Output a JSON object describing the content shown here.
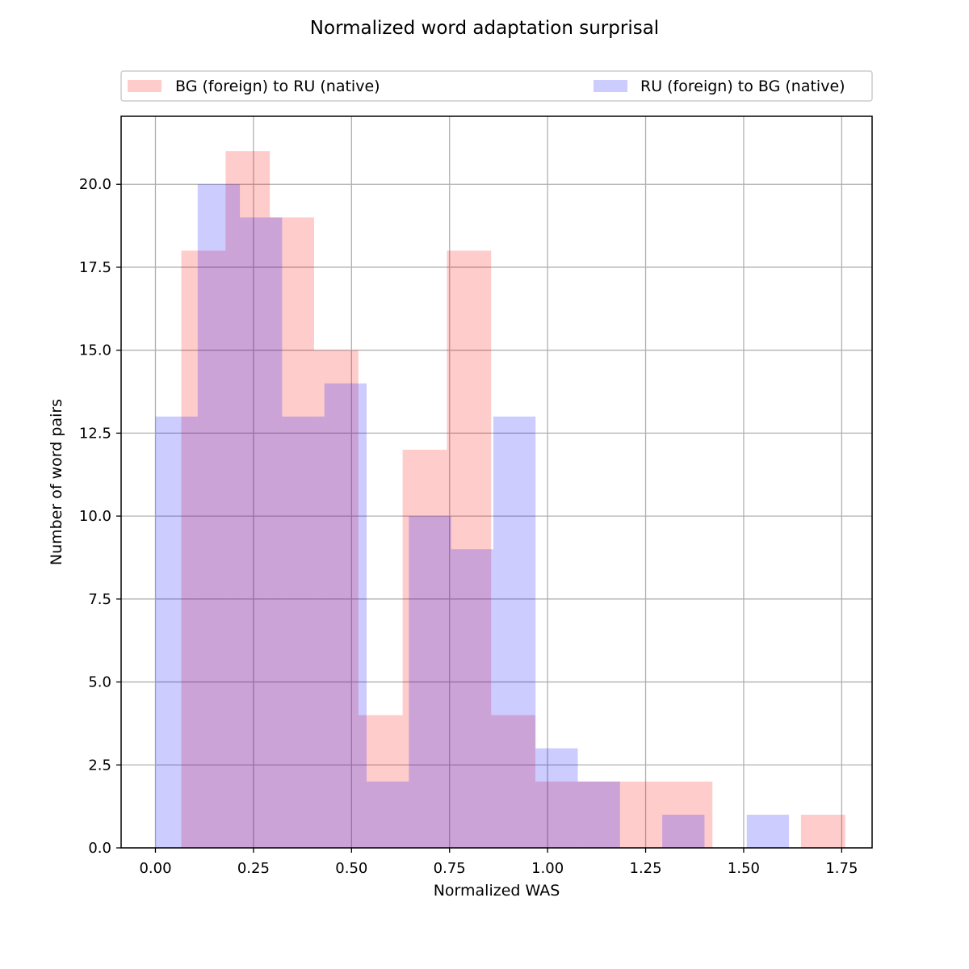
{
  "chart_data": {
    "type": "bar",
    "title": "Normalized word adaptation surprisal",
    "xlabel": "Normalized WAS",
    "ylabel": "Number of word pairs",
    "xlim": [
      -0.0875,
      1.8275
    ],
    "ylim": [
      0,
      22.05
    ],
    "xticks": [
      0.0,
      0.25,
      0.5,
      0.75,
      1.0,
      1.25,
      1.5,
      1.75
    ],
    "xtick_labels": [
      "0.00",
      "0.25",
      "0.50",
      "0.75",
      "1.00",
      "1.25",
      "1.50",
      "1.75"
    ],
    "yticks": [
      0.0,
      2.5,
      5.0,
      7.5,
      10.0,
      12.5,
      15.0,
      17.5,
      20.0
    ],
    "ytick_labels": [
      "0.0",
      "2.5",
      "5.0",
      "7.5",
      "10.0",
      "12.5",
      "15.0",
      "17.5",
      "20.0"
    ],
    "grid": true,
    "legend_position": "top",
    "series": [
      {
        "name": "BG (foreign) to RU (native)",
        "color": "#ff0000",
        "alpha": 0.2,
        "bin_edges": [
          0.066,
          0.1789,
          0.2917,
          0.4046,
          0.5175,
          0.6303,
          0.7432,
          0.856,
          0.9689,
          1.0818,
          1.1946,
          1.3075,
          1.4203,
          1.5332,
          1.646,
          1.7589
        ],
        "counts": [
          18,
          21,
          19,
          15,
          4,
          12,
          18,
          4,
          2,
          2,
          2,
          2,
          0,
          0,
          1
        ]
      },
      {
        "name": "RU (foreign) to BG (native)",
        "color": "#0000ff",
        "alpha": 0.2,
        "bin_edges": [
          0.0,
          0.1077,
          0.2154,
          0.3231,
          0.4308,
          0.5385,
          0.6462,
          0.7539,
          0.8616,
          0.9693,
          1.077,
          1.1847,
          1.2924,
          1.4001,
          1.5078,
          1.6155
        ],
        "counts": [
          13,
          20,
          19,
          13,
          14,
          2,
          10,
          9,
          13,
          3,
          2,
          0,
          1,
          0,
          1
        ]
      }
    ]
  }
}
